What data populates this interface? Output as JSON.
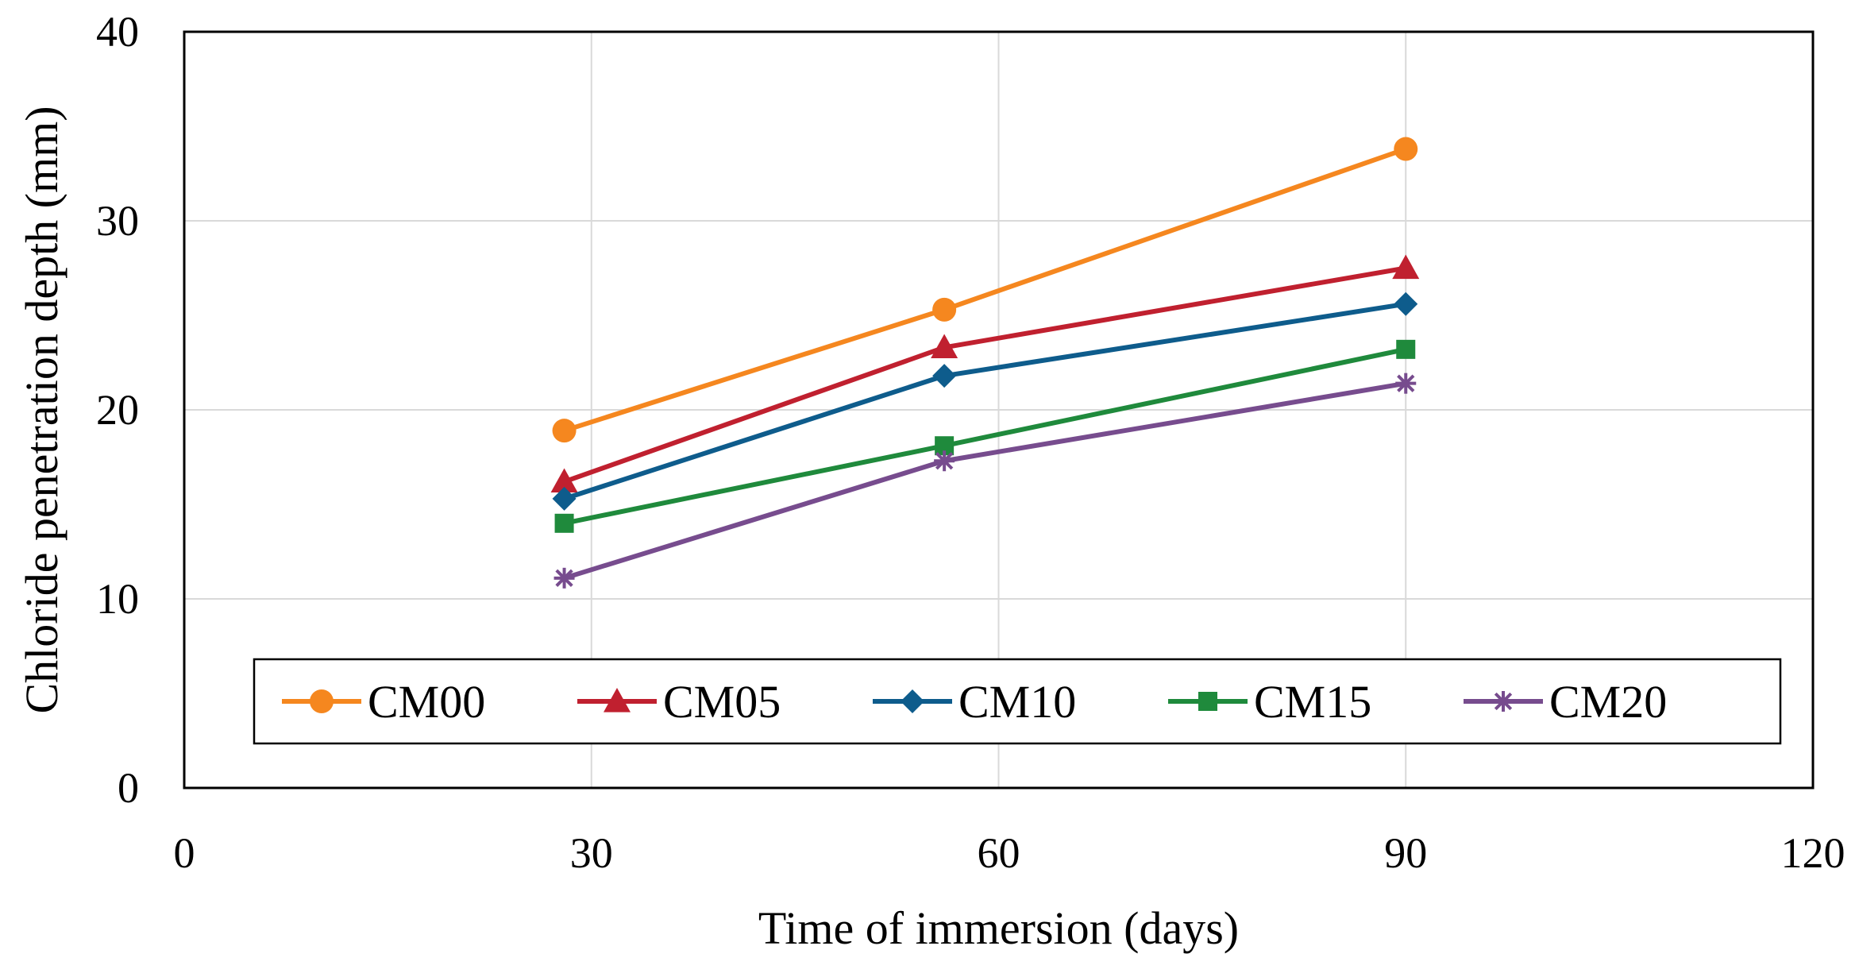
{
  "chart_data": {
    "type": "line",
    "title": "",
    "xlabel": "Time of immersion (days)",
    "ylabel": "Chloride penetration depth (mm)",
    "xlim": [
      0,
      120
    ],
    "ylim": [
      0,
      40
    ],
    "xticks": [
      0,
      30,
      60,
      90,
      120
    ],
    "yticks": [
      0,
      10,
      20,
      30,
      40
    ],
    "grid": true,
    "legend_position": "bottom-inside",
    "x": [
      28,
      56,
      90
    ],
    "series": [
      {
        "name": "CM00",
        "color": "#f5871f",
        "marker": "circle",
        "values": [
          18.9,
          25.3,
          33.8
        ]
      },
      {
        "name": "CM05",
        "color": "#c0202f",
        "marker": "triangle",
        "values": [
          16.2,
          23.3,
          27.5
        ]
      },
      {
        "name": "CM10",
        "color": "#0e5c8c",
        "marker": "diamond",
        "values": [
          15.3,
          21.8,
          25.6
        ]
      },
      {
        "name": "CM15",
        "color": "#1f8a3c",
        "marker": "square",
        "values": [
          14.0,
          18.1,
          23.2
        ]
      },
      {
        "name": "CM20",
        "color": "#774c8e",
        "marker": "star",
        "values": [
          11.1,
          17.3,
          21.4
        ]
      }
    ]
  }
}
